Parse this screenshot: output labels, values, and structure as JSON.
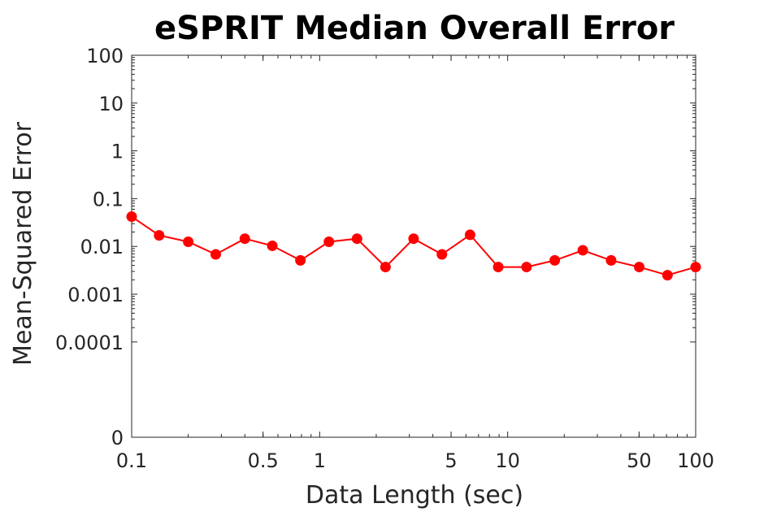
{
  "chart_data": {
    "type": "line",
    "title": "eSPRIT Median Overall Error",
    "xlabel": "Data Length (sec)",
    "ylabel": "Mean-Squared Error",
    "x_scale": "log",
    "y_scale": "log",
    "xlim": [
      0.1,
      100
    ],
    "ylim": [
      0,
      100
    ],
    "x_ticks": [
      {
        "value": 0.1,
        "label": "0.1"
      },
      {
        "value": 0.5,
        "label": "0.5"
      },
      {
        "value": 1,
        "label": "1"
      },
      {
        "value": 5,
        "label": "5"
      },
      {
        "value": 10,
        "label": "10"
      },
      {
        "value": 50,
        "label": "50"
      },
      {
        "value": 100,
        "label": "100"
      }
    ],
    "y_ticks": [
      {
        "value": 0,
        "label": "0"
      },
      {
        "value": 0.0001,
        "label": "0.0001"
      },
      {
        "value": 0.001,
        "label": "0.001"
      },
      {
        "value": 0.01,
        "label": "0.01"
      },
      {
        "value": 0.1,
        "label": "0.1"
      },
      {
        "value": 1,
        "label": "1"
      },
      {
        "value": 10,
        "label": "10"
      },
      {
        "value": 100,
        "label": "100"
      }
    ],
    "grid": false,
    "series": [
      {
        "color": "#ff0000",
        "marker": "filled-circle",
        "x": [
          0.1,
          0.14,
          0.2,
          0.28,
          0.4,
          0.56,
          0.79,
          1.12,
          1.58,
          2.24,
          3.16,
          4.47,
          6.31,
          8.91,
          12.6,
          17.8,
          25.1,
          35.5,
          50.1,
          70.8,
          100
        ],
        "y": [
          0.042,
          0.017,
          0.0125,
          0.0068,
          0.0145,
          0.0103,
          0.0051,
          0.0125,
          0.0145,
          0.0037,
          0.0145,
          0.0068,
          0.0175,
          0.0037,
          0.0037,
          0.0051,
          0.0083,
          0.0051,
          0.0037,
          0.0025,
          0.0037
        ]
      }
    ]
  }
}
